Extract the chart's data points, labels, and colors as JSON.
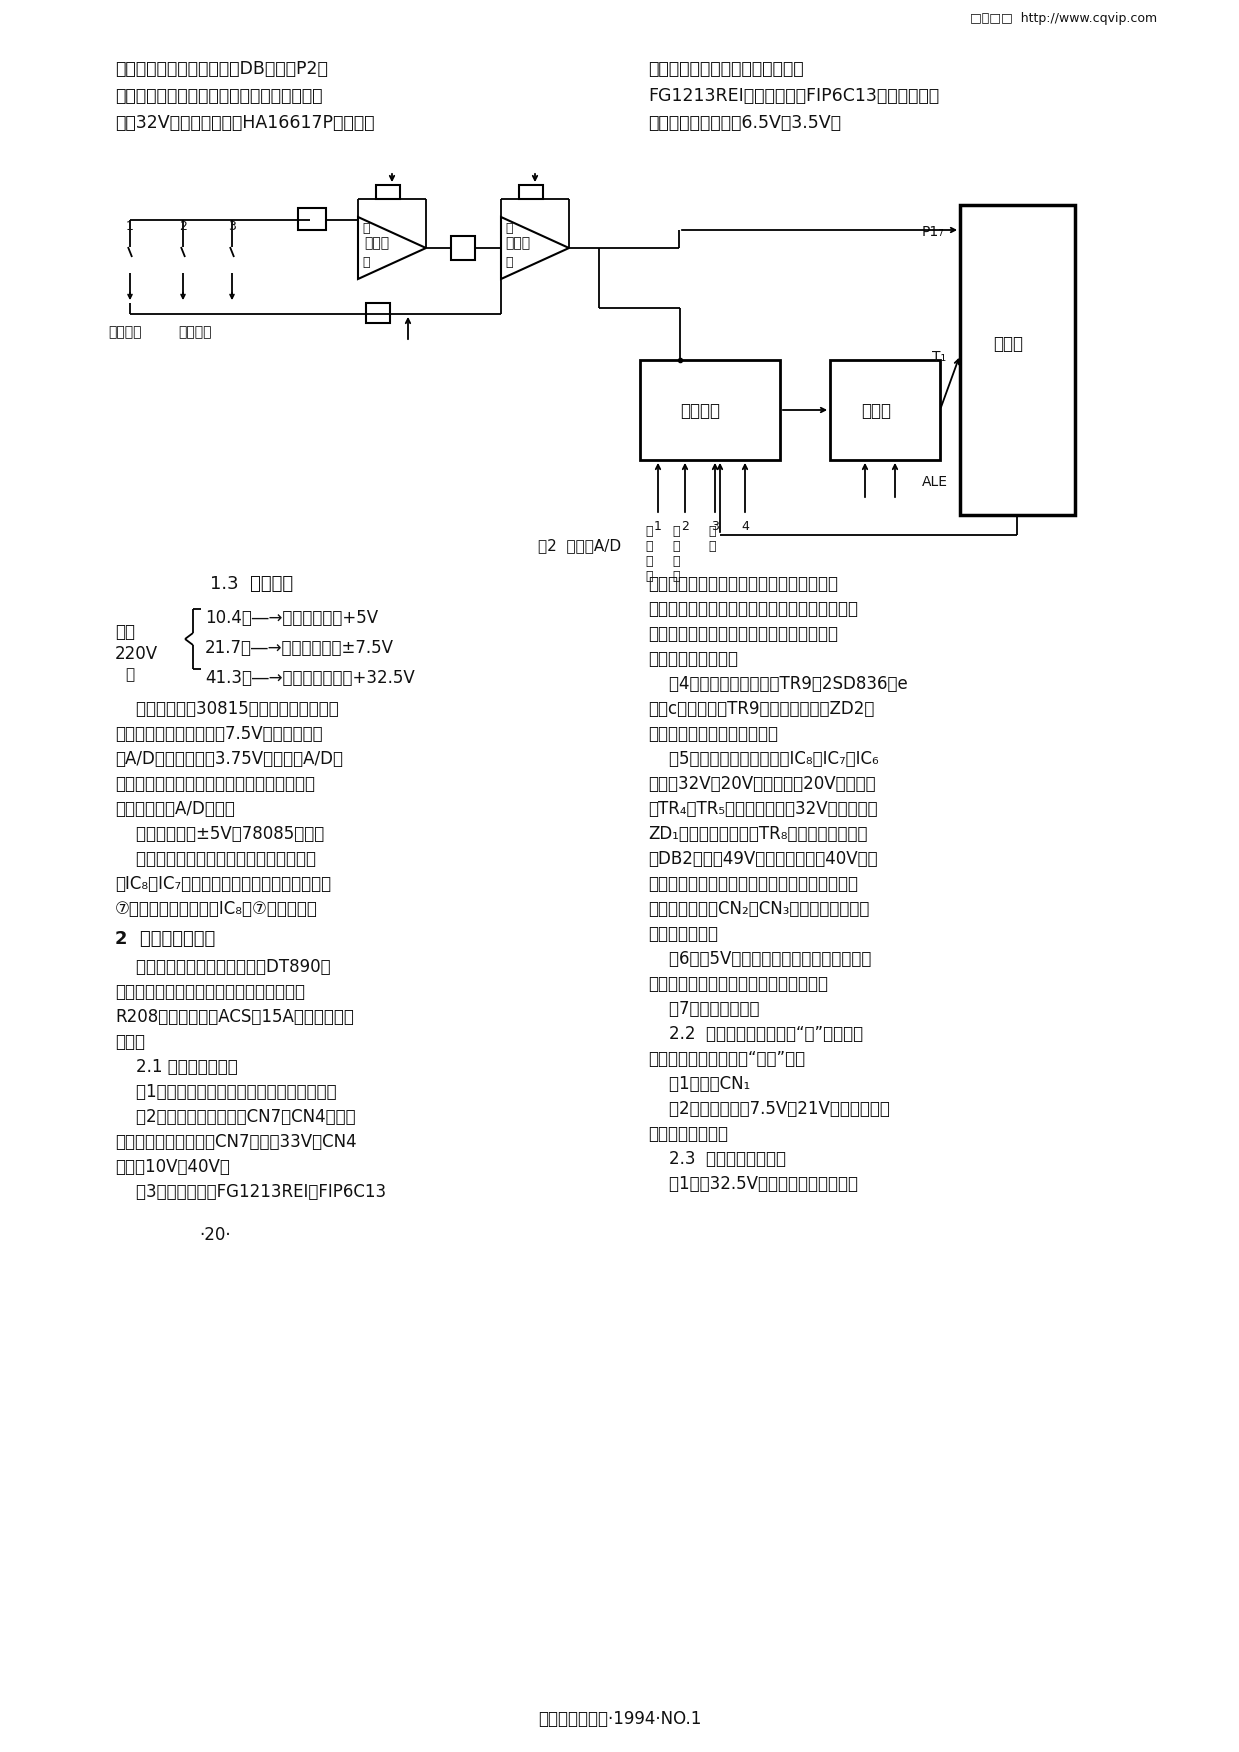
{
  "bg_color": "#ffffff",
  "header_text": "□警□□  http://www.cqvip.com",
  "top_left_para": [
    "有很高的亮度。单片机通过DB总线和P2口",
    "送出段位码进行动态扫描显示。荧光管板极电",
    "压达32V，因此段位码经HA16617P进行电平"
  ],
  "top_right_para": [
    "转换再驱动显示器。显示管一般用",
    "FG1213REI（十二位）和FIP6C13（六位），它",
    "们的灯丝电压分别是6.5V和3.5V。"
  ],
  "fig_caption": "图2  双积分A/D",
  "section1_3_title": "1.3  电源系统",
  "power_line1": "10.4Ｖ―→数字电路电源+5V",
  "power_line2": "21.7Ｖ―→模拟电路电源±7.5V",
  "power_line3": "41.3Ｖ―→显示器电路电源+32.5V",
  "ac_text1": "交流",
  "ac_text2": "220V",
  "power_para": [
    "    传感器桥压北30815供给，外接电阵网络",
    "取其中点为地电位形式＝7.5V供差分放大器",
    "及A/D电路，另外－3.75V电位作为A/D的",
    "基准电压。当桥压波动时，基准电压也同步波",
    "动，不致影响A/D精度。",
    "    数字电路电源±5V北78085供给。",
    "    显示器电源仅由简单稳压电路形成。其中",
    "对IC₈、IC₇两支驱动器是轮流供电，其供电脚",
    "⑦上电压为直流脉冲。IC₈的⑦脚为直流。"
  ],
  "section2_title": "2  故障检查和维修",
  "section2_intro": [
    "    维修电子秤需要一只万用表如DT890型",
    "数字表，最好还有一台示波器。下面以日本",
    "R208秤或上海大和ACS－15A为例介绍维修",
    "方法。"
  ],
  "section2_1_title": "    2.1 开机显示器不亮",
  "section2_1_content": [
    "    （1）检查电源插头、保险丝管、电源开关。",
    "    （2）打开秤上盖，检查CN7、CN4是否插",
    "好，有否断线；再测量CN7上有否33V，CN4",
    "上有否10V、40V。",
    "    （3）在暗处观寻FG1213REI和FIP6C13"
  ],
  "note": "·20·",
  "right_col": [
    "两管灯丝是否发红。不红则检查有否灯丝电",
    "压、灯丝脚有否虚焚。发红表明灯丝工作正常。",
    "检查断丝可在切断电源和用万用表电阱档测",
    "量，约为几个欧姆。",
    "    （4）无灯丝电压可检查TR9（2SD836）e",
    "极和c极电压，如TR9损坏则更换之、ZD2稳",
    "压管击穿也造成无灯丝电压。",
    "    （5）若灯丝无问题，检查IC₈及IC₇、IC₆",
    "是否有32V和20V电压。如无20V电压，检",
    "查TR₄、TR₅是否正常。若无32V电压，检查",
    "ZD₁稳压管是否击穿、TR₈是否正常，进而检",
    "查DB2上有否49V直流电压输出及40V交流",
    "电压输入。通常上述电压正常、显示器应发光。",
    "还可以检查一下CN₂、CN₃插头座，它可能造",
    "成一侧不显示。",
    "    （6）－5V电源无输出，此时讯响器无声、",
    "数字电路不工作、显示器只显示小数点。",
    "    （7）单片机损坏。",
    "    2.2  开机后显示管闪一次“日”后显示息",
    "灯、讯响器发出急促之“嗟嗟”声。",
    "    （1）插好CN₁",
    "    （2）依次检查＝7.5V、21V是否正常，处",
    "理后可恢复正常。",
    "    2.3  显示器不出现数字",
    "    （1）无32.5V电压，检查电源电路。"
  ],
  "footer": "计算与测试技术·1994·NO.1"
}
